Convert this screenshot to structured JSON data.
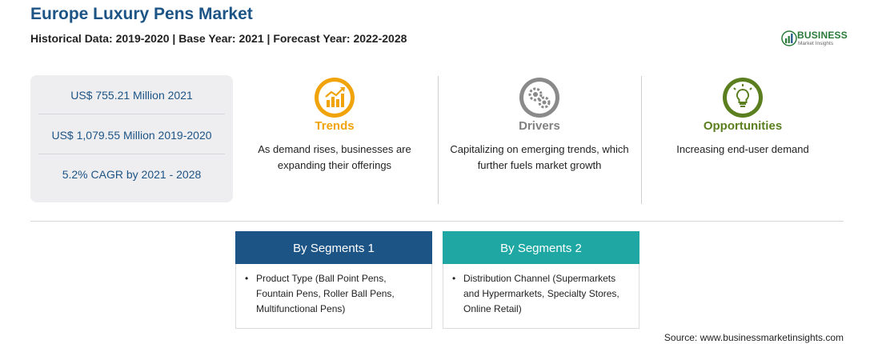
{
  "header": {
    "title": "Europe Luxury Pens Market",
    "subtitle": "Historical Data: 2019-2020 | Base Year: 2021 | Forecast Year: 2022-2028"
  },
  "logo": {
    "name": "BUSINESS",
    "tagline": "Market Insights",
    "icon": "bar-chart-logo-icon",
    "color": "#2a7a3a"
  },
  "stats": [
    "US$ 755.21 Million 2021",
    "US$ 1,079.55 Million 2019-2020",
    "5.2% CAGR by 2021 - 2028"
  ],
  "columns": {
    "trends": {
      "heading": "Trends",
      "text": "As demand rises, businesses are expanding their offerings",
      "icon": "growth-chart-icon",
      "color": "#f0a30a"
    },
    "drivers": {
      "heading": "Drivers",
      "text": "Capitalizing on emerging trends, which further fuels market growth",
      "icon": "gears-icon",
      "color": "#808080"
    },
    "opportunities": {
      "heading": "Opportunities",
      "text": "Increasing end-user demand",
      "icon": "lightbulb-icon",
      "color": "#5b7f1f"
    }
  },
  "segments": [
    {
      "title": "By Segments 1",
      "item": "Product Type (Ball Point Pens, Fountain Pens, Roller Ball Pens, Multifunctional Pens)",
      "color": "#1d5486"
    },
    {
      "title": "By Segments 2",
      "item": "Distribution Channel (Supermarkets and Hypermarkets, Specialty Stores, Online Retail)",
      "color": "#1fa7a4"
    }
  ],
  "bullet": "•",
  "source": "Source: www.businessmarketinsights.com"
}
